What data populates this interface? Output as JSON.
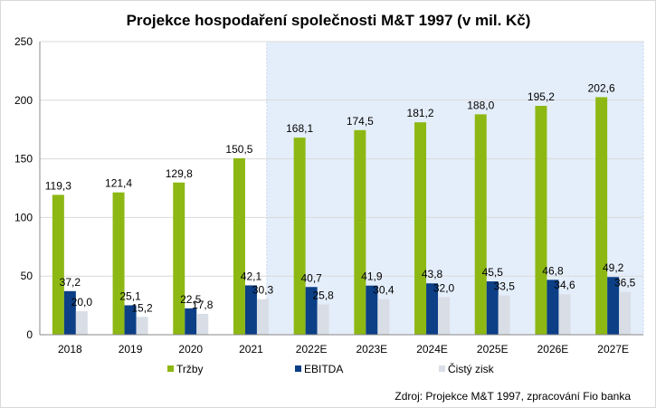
{
  "chart_data": {
    "type": "bar",
    "title": "Projekce hospodaření společnosti M&T 1997 (v mil. Kč)",
    "xlabel": "",
    "ylabel": "",
    "ylim": [
      0,
      250
    ],
    "yticks": [
      0,
      50,
      100,
      150,
      200,
      250
    ],
    "grid": true,
    "legend_position": "bottom",
    "categories": [
      "2018",
      "2019",
      "2020",
      "2021",
      "2022E",
      "2023E",
      "2024E",
      "2025E",
      "2026E",
      "2027E"
    ],
    "forecast_shading_from": "2022E",
    "series": [
      {
        "name": "Tržby",
        "color": "#8DB814",
        "values": [
          119.3,
          121.4,
          129.8,
          150.5,
          168.1,
          174.5,
          181.2,
          188.0,
          195.2,
          202.6
        ],
        "labels": [
          "119,3",
          "121,4",
          "129,8",
          "150,5",
          "168,1",
          "174,5",
          "181,2",
          "188,0",
          "195,2",
          "202,6"
        ]
      },
      {
        "name": "EBITDA",
        "color": "#0C3F86",
        "values": [
          37.2,
          25.1,
          22.5,
          42.1,
          40.7,
          41.9,
          43.8,
          45.5,
          46.8,
          49.2
        ],
        "labels": [
          "37,2",
          "25,1",
          "22,5",
          "42,1",
          "40,7",
          "41,9",
          "43,8",
          "45,5",
          "46,8",
          "49,2"
        ]
      },
      {
        "name": "Čistý zisk",
        "color": "#D9DDE6",
        "values": [
          20.0,
          15.2,
          17.8,
          30.3,
          25.8,
          30.4,
          32.0,
          33.5,
          34.6,
          36.5
        ],
        "labels": [
          "20,0",
          "15,2",
          "17,8",
          "30,3",
          "25,8",
          "30,4",
          "32,0",
          "33,5",
          "34,6",
          "36,5"
        ]
      }
    ],
    "source": "Zdroj:  Projekce M&T 1997, zpracování  Fio banka",
    "colors": {
      "forecast_background": "#E4EEFA",
      "gridline": "#D9D9D9"
    }
  }
}
